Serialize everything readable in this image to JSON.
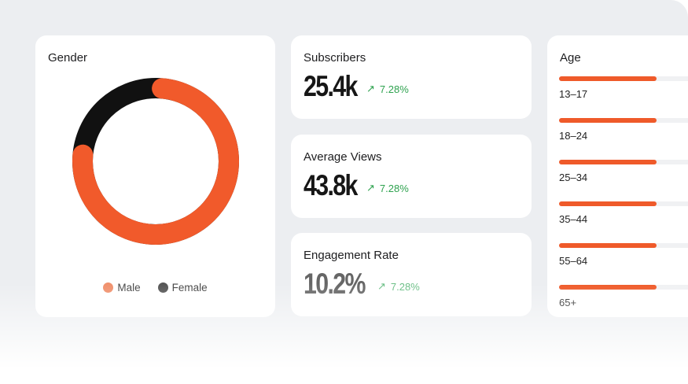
{
  "colors": {
    "accent": "#f15a2b",
    "female": "#111111",
    "positive": "#2ea24f"
  },
  "gender": {
    "title": "Gender",
    "male_percent": 75,
    "female_percent": 25,
    "legend": [
      {
        "label": "Male",
        "color": "#f0906c"
      },
      {
        "label": "Female",
        "color": "#555555"
      }
    ]
  },
  "stats": [
    {
      "title": "Subscribers",
      "value": "25.4k",
      "change": "7.28%",
      "change_icon": "arrow-up-right-icon"
    },
    {
      "title": "Average Views",
      "value": "43.8k",
      "change": "7.28%",
      "change_icon": "arrow-up-right-icon"
    },
    {
      "title": "Engagement Rate",
      "value": "10.2%",
      "change": "7.28%",
      "change_icon": "arrow-up-right-icon"
    }
  ],
  "age": {
    "title": "Age",
    "groups": [
      {
        "label": "13–17",
        "percent": 62
      },
      {
        "label": "18–24",
        "percent": 62
      },
      {
        "label": "25–34",
        "percent": 62
      },
      {
        "label": "35–44",
        "percent": 62
      },
      {
        "label": "55–64",
        "percent": 62
      },
      {
        "label": "65+",
        "percent": 62
      }
    ]
  }
}
